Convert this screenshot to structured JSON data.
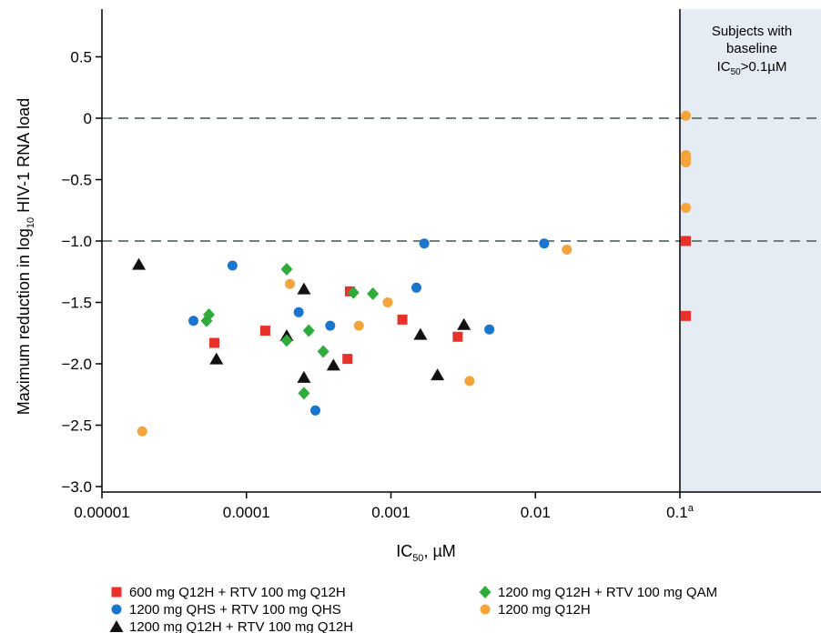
{
  "chart_data": {
    "type": "scatter",
    "xlabel": "IC",
    "xlabel_sub": "50",
    "xlabel_unit": ", µM",
    "ylabel_pre": "Maximum reduction in log",
    "ylabel_sub": "10",
    "ylabel_post": " HIV-1 RNA load",
    "x_scale": "log",
    "xlim": [
      1e-05,
      1
    ],
    "ylim": [
      -3.0,
      0.5
    ],
    "x_ticks": [
      {
        "value": 1e-05,
        "label": "0.00001"
      },
      {
        "value": 0.0001,
        "label": "0.0001"
      },
      {
        "value": 0.001,
        "label": "0.001"
      },
      {
        "value": 0.01,
        "label": "0.01"
      },
      {
        "value": 0.1,
        "label": "0.1",
        "sup": "a"
      }
    ],
    "y_ticks": [
      {
        "value": 0.5,
        "label": "0.5"
      },
      {
        "value": 0.0,
        "label": "0"
      },
      {
        "value": -0.5,
        "label": "−0.5"
      },
      {
        "value": -1.0,
        "label": "−1.0"
      },
      {
        "value": -1.5,
        "label": "−1.5"
      },
      {
        "value": -2.0,
        "label": "−2.0"
      },
      {
        "value": -2.5,
        "label": "−2.5"
      },
      {
        "value": -3.0,
        "label": "−3.0"
      }
    ],
    "reference_lines": [
      0,
      -1.0
    ],
    "shaded_region": {
      "x_from": 0.1,
      "label_lines": [
        "Subjects with",
        "baseline"
      ],
      "label_last_pre": "IC",
      "label_last_sub": "50",
      "label_last_post": ">0.1µM",
      "fill": "#e6ecf4"
    },
    "legend_position": "bottom",
    "series": [
      {
        "name": "600 mg Q12H + RTV 100 mg Q12H",
        "marker": "square",
        "color": "#e8312a",
        "points": [
          {
            "x": 6e-05,
            "y": -1.83
          },
          {
            "x": 0.000135,
            "y": -1.73
          },
          {
            "x": 0.0005,
            "y": -1.96
          },
          {
            "x": 0.00052,
            "y": -1.41
          },
          {
            "x": 0.0012,
            "y": -1.64
          },
          {
            "x": 0.0029,
            "y": -1.78
          },
          {
            "x": 0.11,
            "y": -1.0
          },
          {
            "x": 0.11,
            "y": -1.61
          }
        ]
      },
      {
        "name": "1200 mg QHS + RTV 100 mg QHS",
        "marker": "circle",
        "color": "#1a75cf",
        "points": [
          {
            "x": 4.3e-05,
            "y": -1.65
          },
          {
            "x": 8e-05,
            "y": -1.2
          },
          {
            "x": 0.00023,
            "y": -1.58
          },
          {
            "x": 0.0003,
            "y": -2.38
          },
          {
            "x": 0.00038,
            "y": -1.69
          },
          {
            "x": 0.0015,
            "y": -1.38
          },
          {
            "x": 0.0017,
            "y": -1.02
          },
          {
            "x": 0.0048,
            "y": -1.72
          },
          {
            "x": 0.0115,
            "y": -1.02
          }
        ]
      },
      {
        "name": "1200 mg Q12H + RTV 100 mg Q12H",
        "marker": "triangle",
        "color": "#111111",
        "points": [
          {
            "x": 1.8e-05,
            "y": -1.19
          },
          {
            "x": 6.2e-05,
            "y": -1.96
          },
          {
            "x": 0.00019,
            "y": -1.77
          },
          {
            "x": 0.00025,
            "y": -1.39
          },
          {
            "x": 0.00025,
            "y": -2.11
          },
          {
            "x": 0.0004,
            "y": -2.01
          },
          {
            "x": 0.0016,
            "y": -1.76
          },
          {
            "x": 0.0021,
            "y": -2.09
          },
          {
            "x": 0.0032,
            "y": -1.68
          }
        ]
      },
      {
        "name": "1200 mg Q12H + RTV 100 mg QAM",
        "marker": "diamond",
        "color": "#2eab3a",
        "points": [
          {
            "x": 5.3e-05,
            "y": -1.65
          },
          {
            "x": 5.5e-05,
            "y": -1.6
          },
          {
            "x": 0.00019,
            "y": -1.23
          },
          {
            "x": 0.00019,
            "y": -1.81
          },
          {
            "x": 0.00025,
            "y": -2.24
          },
          {
            "x": 0.00027,
            "y": -1.73
          },
          {
            "x": 0.00034,
            "y": -1.9
          },
          {
            "x": 0.00055,
            "y": -1.42
          },
          {
            "x": 0.00075,
            "y": -1.43
          }
        ]
      },
      {
        "name": "1200 mg Q12H",
        "marker": "circle",
        "color": "#f5a33b",
        "points": [
          {
            "x": 1.9e-05,
            "y": -2.55
          },
          {
            "x": 0.0002,
            "y": -1.35
          },
          {
            "x": 0.0006,
            "y": -1.69
          },
          {
            "x": 0.00095,
            "y": -1.5
          },
          {
            "x": 0.0035,
            "y": -2.14
          },
          {
            "x": 0.0165,
            "y": -1.07
          },
          {
            "x": 0.11,
            "y": 0.02
          },
          {
            "x": 0.11,
            "y": -0.3
          },
          {
            "x": 0.11,
            "y": -0.33
          },
          {
            "x": 0.11,
            "y": -0.36
          },
          {
            "x": 0.11,
            "y": -0.73
          }
        ]
      }
    ],
    "legend_layout": [
      {
        "series": 0,
        "col": 0,
        "row": 0
      },
      {
        "series": 3,
        "col": 1,
        "row": 0
      },
      {
        "series": 1,
        "col": 0,
        "row": 1
      },
      {
        "series": 4,
        "col": 1,
        "row": 1
      },
      {
        "series": 2,
        "col": 0,
        "row": 2
      }
    ]
  }
}
